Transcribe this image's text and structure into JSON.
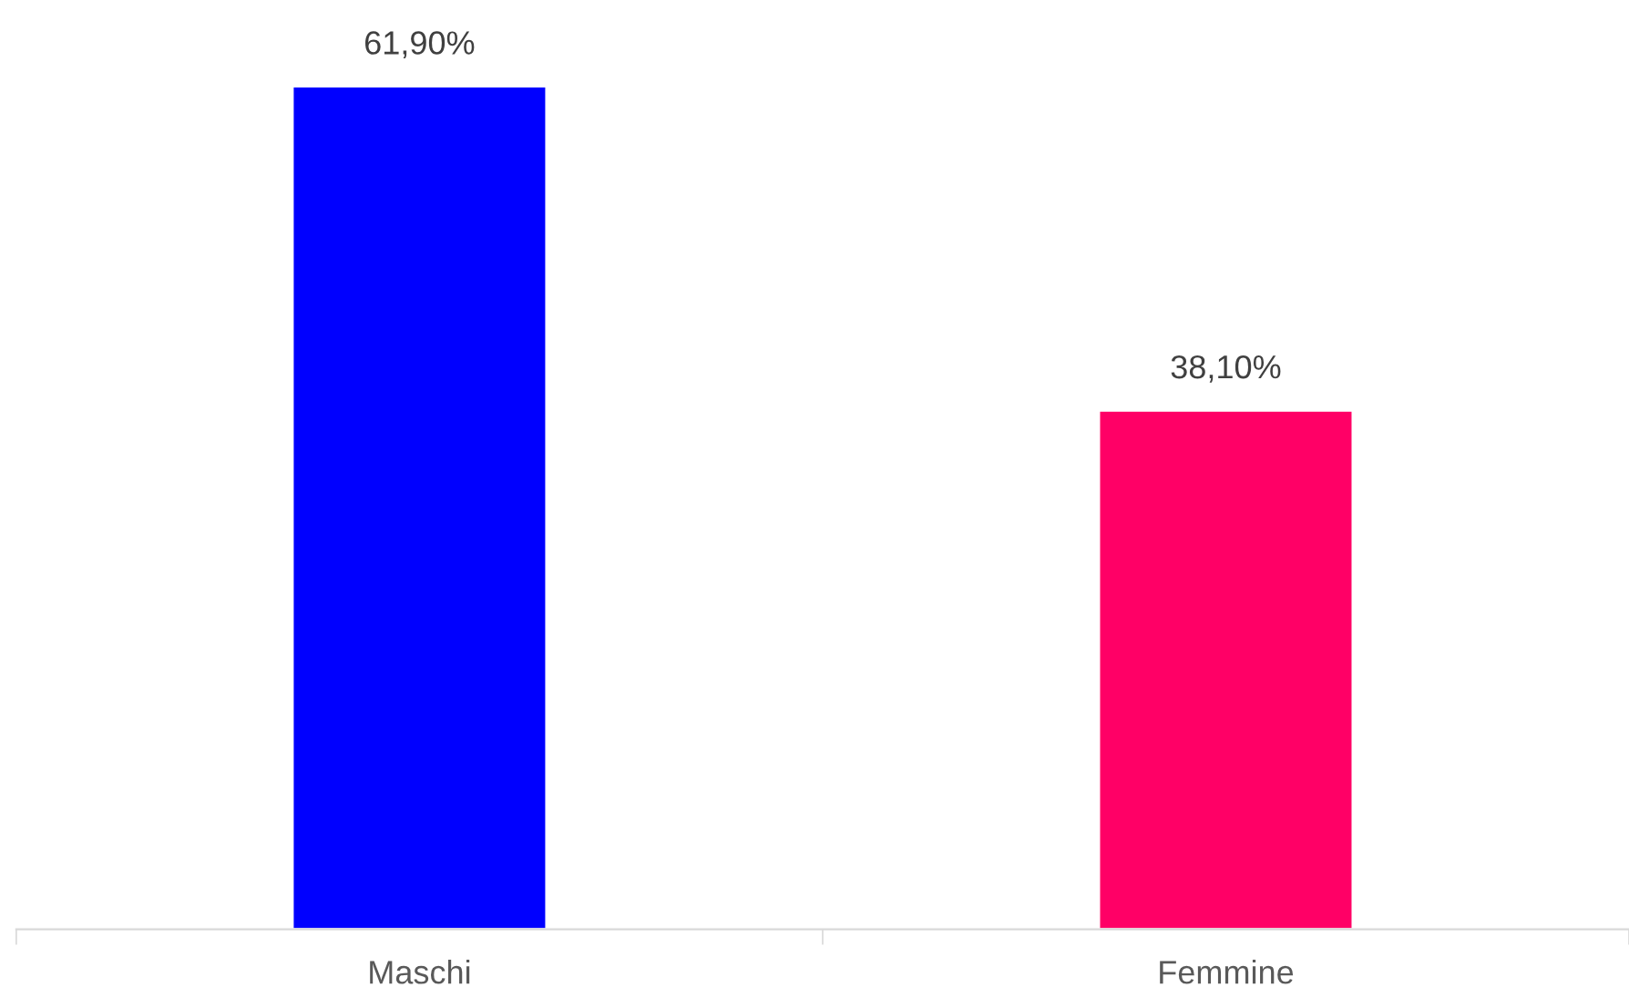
{
  "chart_data": {
    "type": "bar",
    "categories": [
      "Maschi",
      "Femmine"
    ],
    "values": [
      61.9,
      38.1
    ],
    "colors": [
      "#0000ff",
      "#ff0066"
    ],
    "value_labels": [
      "61,90%",
      "38,10%"
    ],
    "grid": false,
    "legend": false
  }
}
